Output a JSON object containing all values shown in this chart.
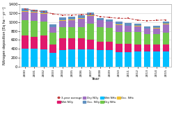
{
  "years": [
    2000,
    2001,
    2002,
    2003,
    2004,
    2005,
    2006,
    2007,
    2008,
    2009,
    2010,
    2011,
    2012,
    2013,
    2014,
    2015
  ],
  "wet_NHx": [
    410,
    400,
    385,
    305,
    380,
    385,
    385,
    385,
    370,
    370,
    325,
    325,
    335,
    340,
    335,
    345
  ],
  "wet_NOy": [
    285,
    270,
    315,
    185,
    255,
    250,
    250,
    215,
    190,
    185,
    195,
    185,
    170,
    160,
    160,
    150
  ],
  "dry_NHx": [
    345,
    360,
    310,
    265,
    255,
    255,
    260,
    360,
    330,
    310,
    265,
    265,
    270,
    230,
    235,
    265
  ],
  "dry_NOy": [
    190,
    180,
    175,
    130,
    145,
    160,
    185,
    175,
    150,
    140,
    155,
    140,
    130,
    120,
    125,
    195
  ],
  "occ_NHx": [
    15,
    15,
    15,
    10,
    10,
    10,
    10,
    15,
    10,
    10,
    10,
    10,
    10,
    10,
    10,
    10
  ],
  "occ_NOy": [
    60,
    55,
    60,
    50,
    55,
    60,
    65,
    60,
    45,
    50,
    55,
    50,
    45,
    50,
    50,
    55
  ],
  "three_yr_avg": [
    1295,
    1260,
    1235,
    1185,
    1160,
    1160,
    1170,
    1180,
    1125,
    1105,
    1085,
    1085,
    1045,
    1030,
    1040,
    1050
  ],
  "colors": {
    "wet_NHx": "#00bfff",
    "wet_NOy": "#e0186c",
    "dry_NHx": "#70c84a",
    "dry_NOy": "#a070c0",
    "occ_NHx": "#f0c030",
    "occ_NOy": "#6090c0"
  },
  "ylim": [
    0,
    1400
  ],
  "yticks": [
    0,
    200,
    400,
    600,
    800,
    1000,
    1200,
    1400
  ],
  "ylabel": "Nitrogen deposition [Eq ha⁻¹ yr⁻¹]",
  "xlabel": "Year",
  "legend_labels": [
    "3-year average",
    "Wet NOy",
    "Dry NOy",
    "Occ. NOy",
    "Wet NHx",
    "Dry NHx",
    "Occ. NHx"
  ],
  "avg_line_color": "#c04040",
  "grid_color": "#d0d0d0",
  "background_color": "#ffffff"
}
